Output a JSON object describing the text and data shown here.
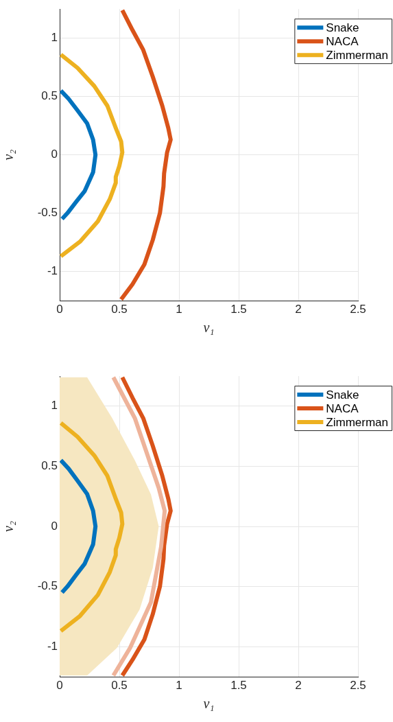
{
  "chart_data": [
    {
      "type": "line",
      "xlabel": "v₁",
      "ylabel": "v₂",
      "xlim": [
        0,
        2.5
      ],
      "ylim": [
        -1.25,
        1.25
      ],
      "xticks": [
        0,
        0.5,
        1,
        1.5,
        2,
        2.5
      ],
      "yticks": [
        -1,
        -0.5,
        0,
        0.5,
        1
      ],
      "grid": true,
      "legend": "top right",
      "series": [
        {
          "name": "Snake",
          "color": "#0072bd",
          "x": [
            0.01,
            0.075,
            0.15,
            0.23,
            0.28,
            0.3,
            0.28,
            0.21,
            0.14,
            0.065,
            0.02
          ],
          "values": [
            0.55,
            0.48,
            0.38,
            0.27,
            0.13,
            0,
            -0.15,
            -0.31,
            -0.4,
            -0.5,
            -0.55
          ]
        },
        {
          "name": "NACA",
          "color": "#d95319",
          "x": [
            0.525,
            0.61,
            0.7,
            0.78,
            0.86,
            0.91,
            0.93,
            0.9,
            0.875,
            0.87,
            0.84,
            0.78,
            0.71,
            0.61,
            0.515
          ],
          "values": [
            1.24,
            1.07,
            0.9,
            0.67,
            0.42,
            0.23,
            0.13,
            0.02,
            -0.16,
            -0.27,
            -0.5,
            -0.73,
            -0.94,
            -1.11,
            -1.24
          ]
        },
        {
          "name": "Zimmerman",
          "color": "#edb120",
          "x": [
            0.01,
            0.15,
            0.29,
            0.4,
            0.47,
            0.515,
            0.525,
            0.5,
            0.47,
            0.47,
            0.42,
            0.32,
            0.17,
            0.01
          ],
          "values": [
            0.86,
            0.745,
            0.59,
            0.42,
            0.23,
            0.115,
            0.02,
            -0.095,
            -0.19,
            -0.24,
            -0.38,
            -0.57,
            -0.745,
            -0.87
          ]
        }
      ]
    },
    {
      "type": "line",
      "xlabel": "v₁",
      "ylabel": "v₂",
      "xlim": [
        0,
        2.5
      ],
      "ylim": [
        -1.25,
        1.25
      ],
      "xticks": [
        0,
        0.5,
        1,
        1.5,
        2,
        2.5
      ],
      "yticks": [
        -1,
        -0.5,
        0,
        0.5,
        1
      ],
      "grid": true,
      "legend": "top right",
      "series": [
        {
          "type": "area",
          "color": "#f6e7c1",
          "x": [
            0,
            0.23,
            0.44,
            0.63,
            0.765,
            0.83,
            0.78,
            0.67,
            0.48,
            0.23,
            0
          ],
          "values": [
            1.24,
            1.24,
            0.9,
            0.55,
            0.265,
            0,
            -0.345,
            -0.69,
            -1.01,
            -1.24,
            -1.24
          ]
        },
        {
          "color": "#eeb39a",
          "x": [
            0.45,
            0.63,
            0.83,
            0.88,
            0.85,
            0.765,
            0.59,
            0.45
          ],
          "values": [
            1.24,
            0.9,
            0.32,
            0.13,
            -0.17,
            -0.63,
            -1.01,
            -1.24
          ]
        },
        {
          "name": "Snake",
          "color": "#0072bd",
          "x": [
            0.01,
            0.075,
            0.15,
            0.23,
            0.28,
            0.3,
            0.28,
            0.21,
            0.14,
            0.065,
            0.02
          ],
          "values": [
            0.55,
            0.48,
            0.38,
            0.27,
            0.13,
            0,
            -0.15,
            -0.31,
            -0.4,
            -0.5,
            -0.55
          ]
        },
        {
          "name": "NACA",
          "color": "#d95319",
          "x": [
            0.525,
            0.61,
            0.7,
            0.78,
            0.86,
            0.91,
            0.93,
            0.9,
            0.875,
            0.87,
            0.84,
            0.78,
            0.71,
            0.61,
            0.525
          ],
          "values": [
            1.24,
            1.07,
            0.9,
            0.67,
            0.42,
            0.23,
            0.13,
            0.02,
            -0.16,
            -0.27,
            -0.5,
            -0.73,
            -0.94,
            -1.11,
            -1.24
          ]
        },
        {
          "name": "Zimmerman",
          "color": "#edb120",
          "x": [
            0.01,
            0.15,
            0.29,
            0.4,
            0.47,
            0.515,
            0.525,
            0.5,
            0.47,
            0.47,
            0.42,
            0.32,
            0.17,
            0.01
          ],
          "values": [
            0.86,
            0.745,
            0.59,
            0.42,
            0.23,
            0.115,
            0.02,
            -0.095,
            -0.19,
            -0.24,
            -0.38,
            -0.57,
            -0.745,
            -0.87
          ]
        }
      ]
    }
  ]
}
